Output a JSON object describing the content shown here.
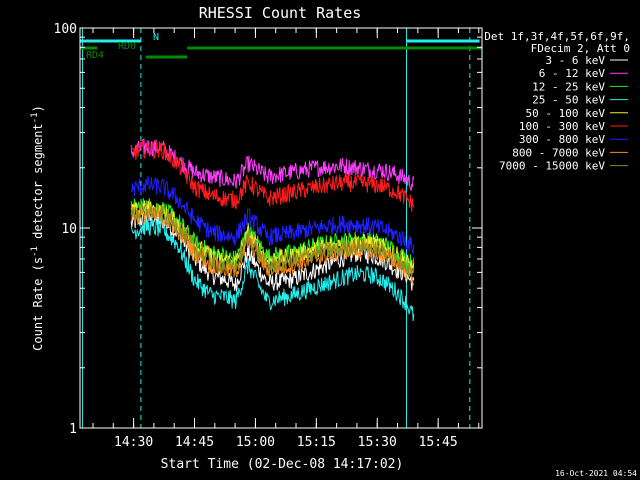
{
  "chart_data": {
    "type": "line",
    "title": "RHESSI Count Rates",
    "xlabel": "Start Time (02-Dec-08 14:17:02)",
    "ylabel": "Count Rate (s",
    "ylabel_sup": "-1",
    "ylabel_rest": " detector segment",
    "ylabel_sup2": "-1",
    "ylabel_end": ")",
    "yscale": "log",
    "ylim": [
      1,
      100
    ],
    "xlim_minutes": [
      14.28,
      15.93
    ],
    "y_ticks": [
      {
        "value": 1,
        "label": "1"
      },
      {
        "value": 10,
        "label": "10"
      },
      {
        "value": 100,
        "label": "100"
      }
    ],
    "x_ticks": [
      {
        "value": 14.5,
        "label": "14:30"
      },
      {
        "value": 14.75,
        "label": "14:45"
      },
      {
        "value": 15.0,
        "label": "15:00"
      },
      {
        "value": 15.25,
        "label": "15:15"
      },
      {
        "value": 15.5,
        "label": "15:30"
      },
      {
        "value": 15.75,
        "label": "15:45"
      }
    ],
    "legend_header": [
      "Det 1f,3f,4f,5f,6f,9f,",
      "FDecim 2, Att 0"
    ],
    "series": [
      {
        "name": "3 - 6 keV",
        "color": "#ffffff",
        "x": [
          14.49,
          14.55,
          14.62,
          14.68,
          14.75,
          14.82,
          14.88,
          14.92,
          14.97,
          15.05,
          15.15,
          15.25,
          15.35,
          15.42,
          15.48,
          15.52,
          15.58,
          15.62,
          15.65
        ],
        "y": [
          10.5,
          11.2,
          10.8,
          9.5,
          7.0,
          5.8,
          5.5,
          5.2,
          7.5,
          5.3,
          5.5,
          6.2,
          7.0,
          7.5,
          7.3,
          7.0,
          6.2,
          5.8,
          5.2
        ]
      },
      {
        "name": "6 - 12 keV",
        "color": "#ff3cff",
        "x": [
          14.49,
          14.55,
          14.62,
          14.68,
          14.75,
          14.82,
          14.88,
          14.92,
          14.97,
          15.05,
          15.15,
          15.25,
          15.35,
          15.42,
          15.48,
          15.52,
          15.58,
          15.62,
          15.65
        ],
        "y": [
          24,
          25.5,
          25,
          22,
          19,
          18,
          17.5,
          17,
          21,
          18,
          19,
          20,
          20.5,
          20,
          19.5,
          19.5,
          18.5,
          17.5,
          16.5
        ]
      },
      {
        "name": "12 - 25 keV",
        "color": "#22ee22",
        "x": [
          14.49,
          14.55,
          14.62,
          14.68,
          14.75,
          14.82,
          14.88,
          14.92,
          14.97,
          15.05,
          15.15,
          15.25,
          15.35,
          15.42,
          15.48,
          15.52,
          15.58,
          15.62,
          15.65
        ],
        "y": [
          12.5,
          13.0,
          12.5,
          11.0,
          8.5,
          7.5,
          7.2,
          7.0,
          9.8,
          7.2,
          7.5,
          8.2,
          8.6,
          8.8,
          8.7,
          8.4,
          7.6,
          7.0,
          6.5
        ]
      },
      {
        "name": "25 - 50 keV",
        "color": "#22eeee",
        "x": [
          14.49,
          14.55,
          14.62,
          14.68,
          14.75,
          14.82,
          14.88,
          14.92,
          14.97,
          15.05,
          15.15,
          15.25,
          15.35,
          15.42,
          15.48,
          15.52,
          15.58,
          15.62,
          15.65
        ],
        "y": [
          9.5,
          10.2,
          9.8,
          8.3,
          5.5,
          4.6,
          4.5,
          4.3,
          6.5,
          4.3,
          4.6,
          5.1,
          5.6,
          5.9,
          5.8,
          5.5,
          4.8,
          4.2,
          3.6
        ]
      },
      {
        "name": "50 - 100 keV",
        "color": "#eeee22",
        "x": [
          14.49,
          14.55,
          14.62,
          14.68,
          14.75,
          14.82,
          14.88,
          14.92,
          14.97,
          15.05,
          15.15,
          15.25,
          15.35,
          15.42,
          15.48,
          15.52,
          15.58,
          15.62,
          15.65
        ],
        "y": [
          12.0,
          12.5,
          12.0,
          10.6,
          8.2,
          7.2,
          6.9,
          6.7,
          9.4,
          6.9,
          7.2,
          7.9,
          8.3,
          8.5,
          8.4,
          8.1,
          7.3,
          6.8,
          6.3
        ]
      },
      {
        "name": "100 - 300 keV",
        "color": "#ff1c1c",
        "x": [
          14.49,
          14.55,
          14.62,
          14.68,
          14.75,
          14.82,
          14.88,
          14.92,
          14.97,
          15.05,
          15.15,
          15.25,
          15.35,
          15.42,
          15.48,
          15.52,
          15.58,
          15.62,
          15.65
        ],
        "y": [
          23.5,
          25,
          24.5,
          21,
          16,
          14.5,
          14,
          13.8,
          17,
          14,
          15,
          16,
          16.8,
          16.8,
          16.5,
          16.2,
          15.2,
          14,
          13
        ]
      },
      {
        "name": "300 - 800 keV",
        "color": "#2020ff",
        "x": [
          14.49,
          14.55,
          14.62,
          14.68,
          14.75,
          14.82,
          14.88,
          14.92,
          14.97,
          15.05,
          15.15,
          15.25,
          15.35,
          15.42,
          15.48,
          15.52,
          15.58,
          15.62,
          15.65
        ],
        "y": [
          15.5,
          16.5,
          16,
          14,
          11,
          9.5,
          9.2,
          9.0,
          11.5,
          9.0,
          9.4,
          10,
          10.5,
          10.4,
          10.2,
          9.9,
          9.2,
          8.6,
          8.0
        ]
      },
      {
        "name": "800 - 7000 keV",
        "color": "#ff8c1c",
        "x": [
          14.49,
          14.55,
          14.62,
          14.68,
          14.75,
          14.82,
          14.88,
          14.92,
          14.97,
          15.05,
          15.15,
          15.25,
          15.35,
          15.42,
          15.48,
          15.52,
          15.58,
          15.62,
          15.65
        ],
        "y": [
          11.2,
          11.8,
          11.3,
          9.8,
          7.6,
          6.5,
          6.2,
          6.0,
          8.6,
          6.2,
          6.5,
          7.1,
          7.6,
          7.8,
          7.7,
          7.4,
          6.7,
          6.1,
          5.6
        ]
      },
      {
        "name": "7000 - 15000 keV",
        "color": "#8c8c1c",
        "x": [
          14.49,
          14.55,
          14.62,
          14.68,
          14.75,
          14.82,
          14.88,
          14.92,
          14.97,
          15.05,
          15.15,
          15.25,
          15.35,
          15.42,
          15.48,
          15.52,
          15.58,
          15.62,
          15.65
        ],
        "y": [
          11.6,
          12.2,
          11.7,
          10.2,
          7.9,
          6.8,
          6.5,
          6.3,
          9.0,
          6.5,
          6.8,
          7.5,
          7.9,
          8.1,
          8.0,
          7.7,
          7.0,
          6.4,
          5.9
        ]
      }
    ],
    "flags": [
      {
        "label": "N",
        "color": "#22eeee",
        "segments": [
          [
            14.28,
            14.53
          ],
          [
            15.62,
            15.92
          ]
        ]
      },
      {
        "label": "RD0",
        "color": "#008c00",
        "segments": [
          [
            14.28,
            14.35
          ],
          [
            14.72,
            15.93
          ]
        ]
      },
      {
        "label": "RD4",
        "color": "#008c00",
        "segments": [
          [
            14.55,
            14.72
          ]
        ]
      }
    ],
    "vlines": [
      {
        "x": 14.29,
        "color": "#22eeee",
        "style": "solid"
      },
      {
        "x": 14.53,
        "color": "#22eeee",
        "style": "dashed"
      },
      {
        "x": 15.62,
        "color": "#22eeee",
        "style": "solid"
      },
      {
        "x": 15.88,
        "color": "#22eeee",
        "style": "dashed"
      }
    ]
  },
  "timestamp": "16-Oct-2021 04:54"
}
